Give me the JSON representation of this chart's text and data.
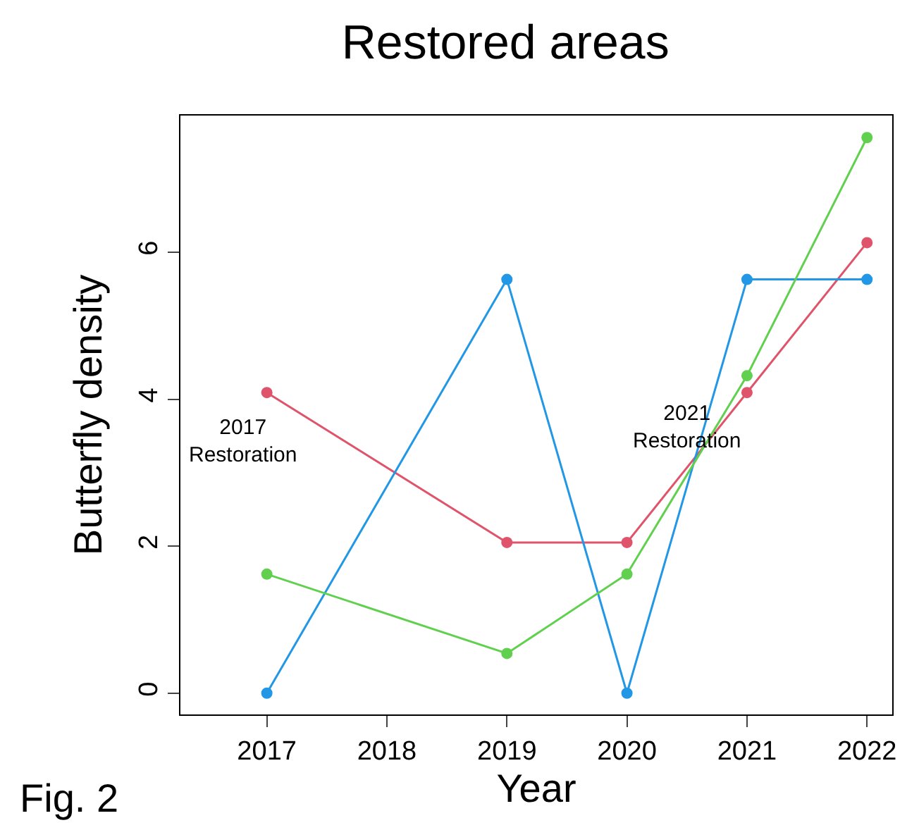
{
  "chart_data": {
    "type": "line",
    "title": "Restored areas",
    "xlabel": "Year",
    "ylabel": "Butterfly density",
    "x": [
      2017,
      2019,
      2020,
      2021,
      2022
    ],
    "series": [
      {
        "color": "#df536b",
        "values": [
          4.09,
          2.05,
          2.05,
          4.09,
          6.13
        ]
      },
      {
        "color": "#2297e6",
        "values": [
          0,
          5.63,
          0,
          5.63,
          5.63
        ]
      },
      {
        "color": "#61d04f",
        "values": [
          1.62,
          0.54,
          1.62,
          4.32,
          7.56
        ]
      }
    ],
    "xlim": [
      2016.28,
      2022.21
    ],
    "xticks": [
      2017,
      2018,
      2019,
      2020,
      2021,
      2022
    ],
    "ylim": [
      -0.29,
      7.86
    ],
    "yticks": [
      0,
      2,
      4,
      6
    ],
    "annotations": [
      "2017\nRestoration",
      "2021\nRestoration",
      "Fig. 2"
    ],
    "marker": "circle",
    "line_style": "solid"
  }
}
